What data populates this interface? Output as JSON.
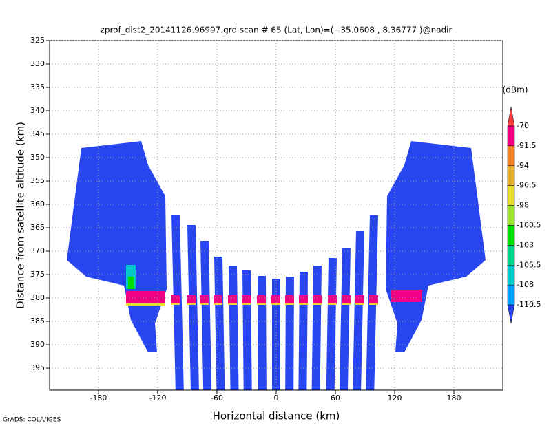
{
  "chart_data": {
    "type": "radar-profile",
    "title": "zprof_dist2_20141126.96997.grd  scan # 65  (Lat, Lon)=(−35.0608 , 8.36777 )@nadir",
    "x_label": "Horizontal distance (km)",
    "y_label": "Distance from satellite altitude (km)",
    "xlim": [
      -229.5,
      229.5
    ],
    "xticks": [
      -180,
      -120,
      -60,
      0,
      60,
      120,
      180
    ],
    "ylim": [
      325,
      399.7
    ],
    "yticks": [
      325,
      330,
      335,
      340,
      345,
      350,
      355,
      360,
      365,
      370,
      375,
      380,
      385,
      390,
      395
    ],
    "y_inverted": true,
    "grid": true,
    "colorbar_unit": "(dBm)",
    "levels": [
      -70,
      -91.5,
      -94,
      -96.5,
      -98,
      -100.5,
      -103,
      -105.5,
      -108,
      -110.5
    ],
    "colors": [
      "#fa3c3c",
      "#f00082",
      "#f08228",
      "#e6af2d",
      "#e6dc32",
      "#a0e632",
      "#00dc00",
      "#00d28c",
      "#00c8c8",
      "#00a0ff",
      "#2846f0"
    ],
    "footer": "GrADS: COLA/IGES"
  }
}
